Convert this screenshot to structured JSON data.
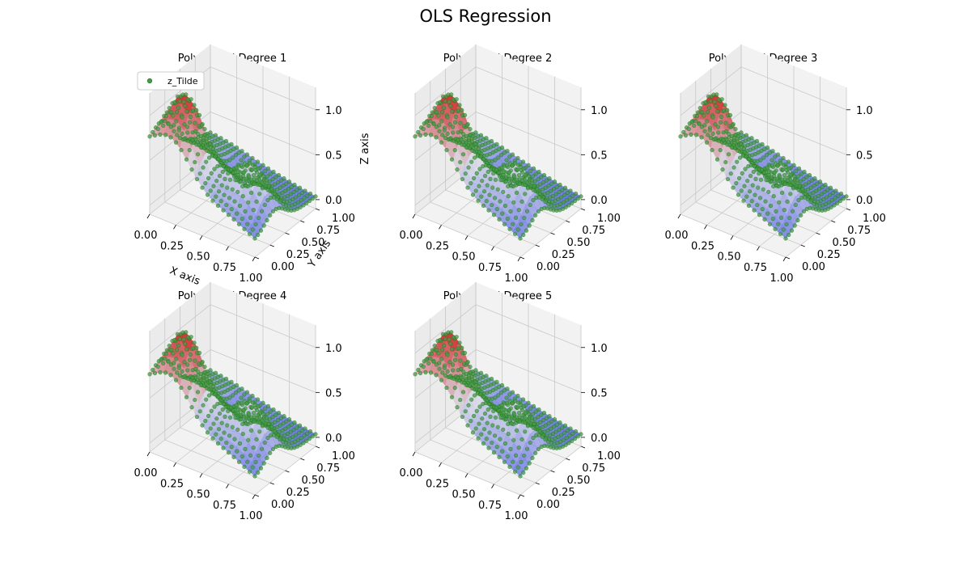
{
  "figure": {
    "title": "OLS Regression"
  },
  "colors": {
    "scatter_fill": "#4a9a4a",
    "scatter_edge": "#1a7a1a",
    "surface_low": "#4a5ae0",
    "surface_mid": "#d7d7e6",
    "surface_high": "#d13030",
    "pane_side": "#ebebeb",
    "pane_floor": "#f2f2f2",
    "grid": "#c8c8c8"
  },
  "chart_data": [
    {
      "type": "surface3d-scatter",
      "title": "Polynomial Degree 1",
      "xlabel": "X axis",
      "ylabel": "Y axis",
      "zlabel": "Z axis",
      "xlim": [
        0,
        1
      ],
      "ylim": [
        0,
        1
      ],
      "zlim": [
        -0.1,
        1.25
      ],
      "xticks": [
        "0.00",
        "0.25",
        "0.50",
        "0.75",
        "1.00"
      ],
      "yticks": [
        "0.00",
        "0.25",
        "0.50",
        "0.75",
        "1.00"
      ],
      "zticks": [
        "0.0",
        "0.5",
        "1.0"
      ],
      "legend": [
        "z_Tilde"
      ],
      "legend_position": "upper left",
      "grid": true
    },
    {
      "type": "surface3d-scatter",
      "title": "Polynomial Degree 2",
      "xlim": [
        0,
        1
      ],
      "ylim": [
        0,
        1
      ],
      "zlim": [
        -0.1,
        1.25
      ],
      "xticks": [
        "0.00",
        "0.25",
        "0.50",
        "0.75",
        "1.00"
      ],
      "yticks": [
        "0.00",
        "0.25",
        "0.50",
        "0.75",
        "1.00"
      ],
      "zticks": [
        "0.0",
        "0.5",
        "1.0"
      ],
      "grid": true
    },
    {
      "type": "surface3d-scatter",
      "title": "Polynomial Degree 3",
      "xlim": [
        0,
        1
      ],
      "ylim": [
        0,
        1
      ],
      "zlim": [
        -0.1,
        1.25
      ],
      "xticks": [
        "0.00",
        "0.25",
        "0.50",
        "0.75",
        "1.00"
      ],
      "yticks": [
        "0.00",
        "0.25",
        "0.50",
        "0.75",
        "1.00"
      ],
      "zticks": [
        "0.0",
        "0.5",
        "1.0"
      ],
      "grid": true
    },
    {
      "type": "surface3d-scatter",
      "title": "Polynomial Degree 4",
      "xlim": [
        0,
        1
      ],
      "ylim": [
        0,
        1
      ],
      "zlim": [
        -0.1,
        1.25
      ],
      "xticks": [
        "0.00",
        "0.25",
        "0.50",
        "0.75",
        "1.00"
      ],
      "yticks": [
        "0.00",
        "0.25",
        "0.50",
        "0.75",
        "1.00"
      ],
      "zticks": [
        "0.0",
        "0.5",
        "1.0"
      ],
      "grid": true
    },
    {
      "type": "surface3d-scatter",
      "title": "Polynomial Degree 5",
      "xlim": [
        0,
        1
      ],
      "ylim": [
        0,
        1
      ],
      "zlim": [
        -0.1,
        1.25
      ],
      "xticks": [
        "0.00",
        "0.25",
        "0.50",
        "0.75",
        "1.00"
      ],
      "yticks": [
        "0.00",
        "0.25",
        "0.50",
        "0.75",
        "1.00"
      ],
      "zticks": [
        "0.0",
        "0.5",
        "1.0"
      ],
      "grid": true
    }
  ]
}
